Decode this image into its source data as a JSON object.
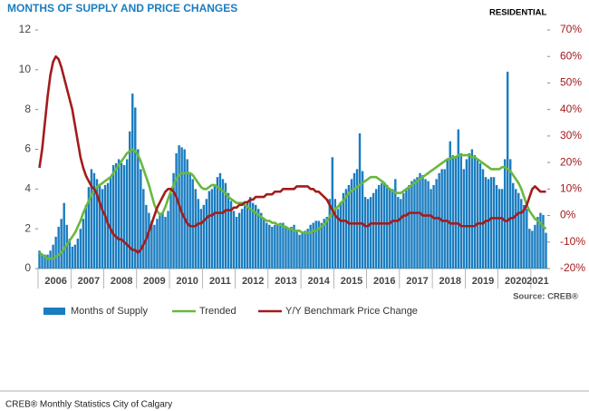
{
  "chart_data": {
    "type": "bar",
    "title": "MONTHS OF SUPPLY AND PRICE CHANGES",
    "annotations": [
      "RESIDENTIAL",
      "Source: CREB®"
    ],
    "categories": [
      null,
      null,
      null,
      null,
      null,
      null,
      "2006",
      null,
      null,
      null,
      null,
      null,
      null,
      null,
      null,
      null,
      null,
      null,
      "2007",
      null,
      null,
      null,
      null,
      null,
      null,
      null,
      null,
      null,
      null,
      null,
      "2008",
      null,
      null,
      null,
      null,
      null,
      null,
      null,
      null,
      null,
      null,
      null,
      "2009",
      null,
      null,
      null,
      null,
      null,
      null,
      null,
      null,
      null,
      null,
      null,
      "2010",
      null,
      null,
      null,
      null,
      null,
      null,
      null,
      null,
      null,
      null,
      null,
      "2011",
      null,
      null,
      null,
      null,
      null,
      null,
      null,
      null,
      null,
      null,
      null,
      "2012",
      null,
      null,
      null,
      null,
      null,
      null,
      null,
      null,
      null,
      null,
      null,
      "2013",
      null,
      null,
      null,
      null,
      null,
      null,
      null,
      null,
      null,
      null,
      null,
      "2014",
      null,
      null,
      null,
      null,
      null,
      null,
      null,
      null,
      null,
      null,
      null,
      "2015",
      null,
      null,
      null,
      null,
      null,
      null,
      null,
      null,
      null,
      null,
      null,
      "2016",
      null,
      null,
      null,
      null,
      null,
      null,
      null,
      null,
      null,
      null,
      null,
      "2017",
      null,
      null,
      null,
      null,
      null,
      null,
      null,
      null,
      null,
      null,
      null,
      "2018",
      null,
      null,
      null,
      null,
      null,
      null,
      null,
      null,
      null,
      null,
      null,
      "2019",
      null,
      null,
      null,
      null,
      null,
      null,
      null,
      null,
      null,
      null,
      null,
      "2020",
      null,
      null,
      null,
      null,
      null,
      null,
      null,
      "2021",
      null,
      null,
      null
    ],
    "ylim": [
      0,
      12
    ],
    "yticks": [
      0,
      2,
      4,
      6,
      8,
      10,
      12
    ],
    "y2lim": [
      -20,
      70
    ],
    "y2ticks": [
      {
        "value": -20,
        "label": "-20%"
      },
      {
        "value": -10,
        "label": "-10%"
      },
      {
        "value": 0,
        "label": "0%"
      },
      {
        "value": 10,
        "label": "10%"
      },
      {
        "value": 20,
        "label": "20%"
      },
      {
        "value": 30,
        "label": "30%"
      },
      {
        "value": 40,
        "label": "40%"
      },
      {
        "value": 50,
        "label": "50%"
      },
      {
        "value": 60,
        "label": "60%"
      },
      {
        "value": 70,
        "label": "70%"
      }
    ],
    "series": [
      {
        "name": "Months of Supply",
        "type": "bar",
        "color": "#1a7dc0",
        "values": [
          0.9,
          0.7,
          0.7,
          0.7,
          0.9,
          1.2,
          1.6,
          2.1,
          2.5,
          3.3,
          2.2,
          1.5,
          1.1,
          1.2,
          1.5,
          2.0,
          2.5,
          3.2,
          4.1,
          5.0,
          4.8,
          4.5,
          4.2,
          4.0,
          4.2,
          4.3,
          4.6,
          5.2,
          5.3,
          5.5,
          5.3,
          5.2,
          5.5,
          6.9,
          8.8,
          8.1,
          6.0,
          5.0,
          4.0,
          3.2,
          2.8,
          2.4,
          2.2,
          2.5,
          2.8,
          2.8,
          2.6,
          2.9,
          3.8,
          4.8,
          5.8,
          6.2,
          6.1,
          6.0,
          5.5,
          4.8,
          4.5,
          4.0,
          3.5,
          3.0,
          3.2,
          3.5,
          3.9,
          4.0,
          4.2,
          4.6,
          4.8,
          4.5,
          4.3,
          3.8,
          3.4,
          2.9,
          2.6,
          2.8,
          3.0,
          3.2,
          3.4,
          3.6,
          3.3,
          3.2,
          3.0,
          2.8,
          2.5,
          2.3,
          2.2,
          2.1,
          2.2,
          2.2,
          2.3,
          2.3,
          2.1,
          2.0,
          2.1,
          2.2,
          1.9,
          1.7,
          1.8,
          1.9,
          2.0,
          2.2,
          2.3,
          2.4,
          2.4,
          2.3,
          2.5,
          2.6,
          3.5,
          5.6,
          3.5,
          3.0,
          3.3,
          3.8,
          4.0,
          4.2,
          4.5,
          4.8,
          5.0,
          6.8,
          4.9,
          3.6,
          3.5,
          3.6,
          3.8,
          4.0,
          4.2,
          4.3,
          4.3,
          4.2,
          4.0,
          4.0,
          4.5,
          3.6,
          3.5,
          3.8,
          4.0,
          4.2,
          4.4,
          4.5,
          4.6,
          4.8,
          4.7,
          4.5,
          4.4,
          4.0,
          4.2,
          4.5,
          4.8,
          5.0,
          5.0,
          5.5,
          6.4,
          5.7,
          5.6,
          7.0,
          5.8,
          5.0,
          5.5,
          5.8,
          6.0,
          5.7,
          5.5,
          5.3,
          5.0,
          4.6,
          4.5,
          4.6,
          4.6,
          4.2,
          4.0,
          4.0,
          5.5,
          9.9,
          5.5,
          4.3,
          4.0,
          3.8,
          3.5,
          3.2,
          3.0,
          2.0,
          1.9,
          2.2,
          2.6,
          2.8,
          2.7,
          1.8
        ]
      },
      {
        "name": "Trended",
        "type": "line",
        "color": "#6ab83f",
        "values": [
          0.8,
          0.7,
          0.6,
          0.5,
          0.5,
          0.5,
          0.6,
          0.7,
          0.8,
          1.0,
          1.2,
          1.4,
          1.6,
          1.8,
          2.1,
          2.4,
          2.8,
          3.1,
          3.4,
          3.7,
          3.9,
          4.1,
          4.2,
          4.3,
          4.4,
          4.5,
          4.6,
          4.8,
          5.0,
          5.2,
          5.4,
          5.6,
          5.8,
          5.9,
          6.0,
          5.9,
          5.7,
          5.4,
          5.0,
          4.6,
          4.2,
          3.7,
          3.2,
          2.9,
          2.7,
          2.8,
          3.1,
          3.5,
          3.9,
          4.2,
          4.5,
          4.7,
          4.8,
          4.8,
          4.8,
          4.8,
          4.7,
          4.5,
          4.3,
          4.1,
          4.0,
          4.0,
          4.1,
          4.2,
          4.2,
          4.1,
          4.0,
          3.9,
          3.8,
          3.6,
          3.5,
          3.4,
          3.3,
          3.3,
          3.3,
          3.2,
          3.1,
          3.0,
          2.9,
          2.8,
          2.7,
          2.6,
          2.5,
          2.4,
          2.4,
          2.3,
          2.3,
          2.2,
          2.2,
          2.1,
          2.1,
          2.0,
          2.0,
          1.9,
          1.9,
          1.9,
          1.8,
          1.8,
          1.8,
          1.8,
          1.9,
          1.9,
          2.0,
          2.1,
          2.2,
          2.4,
          2.6,
          2.8,
          3.0,
          3.1,
          3.3,
          3.4,
          3.6,
          3.8,
          3.9,
          4.0,
          4.1,
          4.2,
          4.3,
          4.4,
          4.5,
          4.6,
          4.6,
          4.6,
          4.5,
          4.4,
          4.3,
          4.1,
          4.0,
          3.9,
          3.8,
          3.8,
          3.8,
          3.9,
          4.0,
          4.1,
          4.2,
          4.3,
          4.4,
          4.5,
          4.6,
          4.7,
          4.8,
          4.9,
          5.0,
          5.1,
          5.2,
          5.3,
          5.4,
          5.5,
          5.5,
          5.6,
          5.6,
          5.7,
          5.7,
          5.7,
          5.7,
          5.7,
          5.6,
          5.6,
          5.5,
          5.4,
          5.3,
          5.2,
          5.1,
          5.0,
          5.0,
          5.0,
          5.0,
          5.1,
          5.1,
          5.0,
          4.9,
          4.7,
          4.5,
          4.3,
          4.0,
          3.6,
          3.2,
          2.9,
          2.7,
          2.5,
          2.4,
          2.3,
          2.1,
          2.0
        ]
      },
      {
        "name": "Y/Y Benchmark Price Change",
        "type": "line",
        "axis": "y2",
        "color": "#a31c1c",
        "values": [
          18,
          25,
          35,
          45,
          53,
          58,
          60,
          59,
          56,
          52,
          48,
          44,
          40,
          34,
          28,
          22,
          18,
          15,
          13,
          11,
          10,
          8,
          5,
          2,
          0,
          -3,
          -5,
          -7,
          -8,
          -9,
          -9,
          -10,
          -11,
          -12,
          -13,
          -13,
          -14,
          -13,
          -11,
          -9,
          -6,
          -3,
          0,
          3,
          5,
          7,
          9,
          10,
          10,
          9,
          7,
          4,
          1,
          -1,
          -3,
          -4,
          -4,
          -4,
          -3,
          -3,
          -2,
          -1,
          0,
          0,
          1,
          1,
          1,
          1,
          2,
          2,
          2,
          3,
          3,
          4,
          4,
          5,
          5,
          6,
          6,
          7,
          7,
          7,
          7,
          8,
          8,
          8,
          9,
          9,
          9,
          10,
          10,
          10,
          10,
          10,
          11,
          11,
          11,
          11,
          11,
          10,
          10,
          9,
          9,
          8,
          7,
          6,
          4,
          2,
          0,
          -1,
          -2,
          -2,
          -2,
          -3,
          -3,
          -3,
          -3,
          -3,
          -3,
          -4,
          -4,
          -3,
          -3,
          -3,
          -3,
          -3,
          -3,
          -3,
          -3,
          -2,
          -2,
          -2,
          -1,
          0,
          0,
          1,
          1,
          1,
          1,
          1,
          0,
          0,
          0,
          0,
          -1,
          -1,
          -1,
          -2,
          -2,
          -2,
          -3,
          -3,
          -3,
          -3,
          -4,
          -4,
          -4,
          -4,
          -4,
          -4,
          -3,
          -3,
          -3,
          -2,
          -2,
          -1,
          -1,
          -1,
          -1,
          -1,
          -2,
          -2,
          -1,
          -1,
          0,
          1,
          1,
          2,
          4,
          7,
          10,
          11,
          10,
          9,
          9,
          9
        ]
      }
    ]
  },
  "footer": "CREB® Monthly Statistics City of Calgary"
}
